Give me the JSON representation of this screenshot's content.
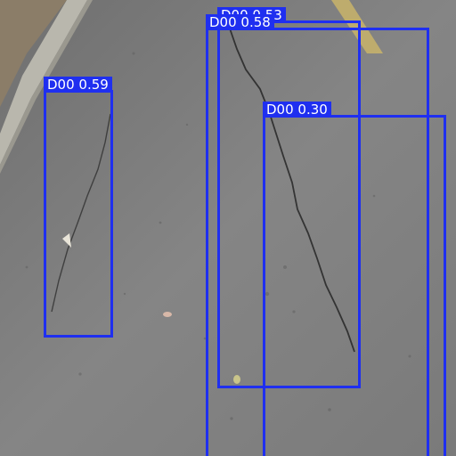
{
  "detections": [
    {
      "label": "D00",
      "score": "0.59",
      "text": "D00 0.59"
    },
    {
      "label": "D00",
      "score": "0.53",
      "text": "D00 0.53"
    },
    {
      "label": "D00",
      "score": "0.58",
      "text": "D00 0.58"
    },
    {
      "label": "D00",
      "score": "0.30",
      "text": "D00 0.30"
    }
  ],
  "colors": {
    "box": "#1f2ff0",
    "label_text": "#ffffff",
    "asphalt": "#7d7d7d",
    "curb": "#b9b7ad",
    "soil": "#8b7d68",
    "lane_mark": "#c9b46a"
  }
}
